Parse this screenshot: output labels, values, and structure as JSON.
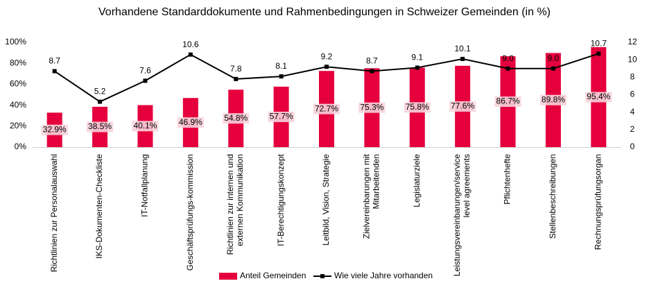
{
  "chart_data": {
    "type": "bar",
    "title": "Vorhandene Standarddokumente und Rahmenbedingungen in Schweizer Gemeinden (in %)",
    "categories": [
      "Richtlinien zur Personalauswahl",
      "IKS-Dokumenten-Checkliste",
      "IT-Notfallplanung",
      "Geschäftsprüfungs-kommission",
      "Richtlinien zur internen und\nexternen Kommunikation",
      "IT-Berechtigungskonzept",
      "Leitbild, Vision, Strategie",
      "Zielvereinbarungen mit\nMitarbeitenden",
      "Legislaturziele",
      "Leistungsvereinbarungen/service\nlevel agreements",
      "Pflichtenhefte",
      "Stellenbeschreibungen",
      "Rechnungsprüfungsorgan"
    ],
    "series": [
      {
        "name": "Anteil Gemeinden",
        "type": "bar",
        "color": "#e5003d",
        "axis": "y",
        "values": [
          32.9,
          38.5,
          40.1,
          46.9,
          54.8,
          57.7,
          72.7,
          75.3,
          75.8,
          77.6,
          86.7,
          89.8,
          95.4
        ],
        "value_labels": [
          "32.9%",
          "38.5%",
          "40.1%",
          "46.9%",
          "54.8%",
          "57.7%",
          "72.7%",
          "75.3%",
          "75.8%",
          "77.6%",
          "86.7%",
          "89.8%",
          "95.4%"
        ]
      },
      {
        "name": "Wie viele Jahre vorhanden",
        "type": "line",
        "color": "#000000",
        "axis": "y2",
        "values": [
          8.7,
          5.2,
          7.6,
          10.6,
          7.8,
          8.1,
          9.2,
          8.7,
          9.1,
          10.1,
          9.0,
          9.0,
          10.7
        ],
        "value_labels": [
          "8.7",
          "5.2",
          "7.6",
          "10.6",
          "7.8",
          "8.1",
          "9.2",
          "8.7",
          "9.1",
          "10.1",
          "9.0",
          "9.0",
          "10.7"
        ]
      }
    ],
    "ylim": [
      0,
      100
    ],
    "yticks": [
      {
        "value": 0,
        "label": "0%"
      },
      {
        "value": 20,
        "label": "20%"
      },
      {
        "value": 40,
        "label": "40%"
      },
      {
        "value": 60,
        "label": "60%"
      },
      {
        "value": 80,
        "label": "80%"
      },
      {
        "value": 100,
        "label": "100%"
      }
    ],
    "y2lim": [
      0,
      12
    ],
    "y2ticks": [
      0,
      2,
      4,
      6,
      8,
      10,
      12
    ],
    "legend": "bottom"
  }
}
